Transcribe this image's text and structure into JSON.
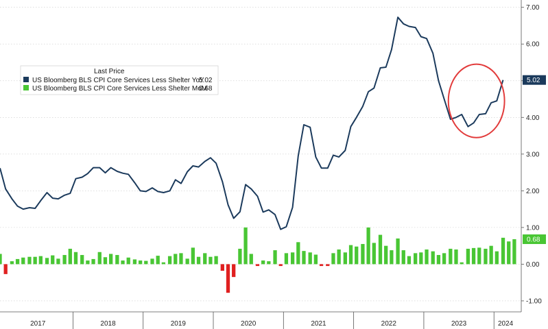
{
  "chart_data": {
    "type": "line",
    "legend": {
      "header": "Last Price",
      "position": "top-left",
      "entries": [
        {
          "label": "US Bloomberg BLS CPI Core Services Less Shelter YoY",
          "value": "5.02",
          "color": "#1b3a5c"
        },
        {
          "label": "US Bloomberg BLS CPI Core Services Less Shelter MoM",
          "value": "0.68",
          "color": "#49c634"
        }
      ]
    },
    "yaxis": {
      "side": "right",
      "ylim": [
        -1.3,
        7.2
      ],
      "ticks": [
        "7.00",
        "6.00",
        "5.00",
        "4.00",
        "3.00",
        "2.00",
        "1.00",
        "0.00",
        "-1.00"
      ],
      "tick_values": [
        7,
        6,
        5,
        4,
        3,
        2,
        1,
        0,
        -1
      ]
    },
    "xaxis": {
      "years": [
        "2017",
        "2018",
        "2019",
        "2020",
        "2021",
        "2022",
        "2023",
        "2024"
      ],
      "start": 2016.96,
      "end": 2024.33
    },
    "grid": "dotted",
    "last_value_badges": [
      {
        "value": "5.02",
        "color": "#1b3a5c"
      },
      {
        "value": "0.68",
        "color": "#49c634"
      }
    ],
    "highlight_circle": {
      "color": "#e23b3b",
      "x_range": [
        2023.35,
        2024.15
      ],
      "y_range": [
        3.45,
        5.45
      ]
    },
    "series": [
      {
        "name": "US Bloomberg BLS CPI Core Services Less Shelter YoY",
        "kind": "line",
        "color": "#1b3a5c",
        "points": [
          [
            2016.96,
            2.62
          ],
          [
            2017.04,
            2.05
          ],
          [
            2017.13,
            1.78
          ],
          [
            2017.21,
            1.58
          ],
          [
            2017.29,
            1.5
          ],
          [
            2017.38,
            1.54
          ],
          [
            2017.46,
            1.52
          ],
          [
            2017.54,
            1.73
          ],
          [
            2017.63,
            1.95
          ],
          [
            2017.71,
            1.8
          ],
          [
            2017.79,
            1.78
          ],
          [
            2017.88,
            1.88
          ],
          [
            2017.96,
            1.93
          ],
          [
            2018.04,
            2.33
          ],
          [
            2018.13,
            2.37
          ],
          [
            2018.21,
            2.47
          ],
          [
            2018.29,
            2.63
          ],
          [
            2018.38,
            2.63
          ],
          [
            2018.46,
            2.49
          ],
          [
            2018.54,
            2.63
          ],
          [
            2018.63,
            2.53
          ],
          [
            2018.71,
            2.48
          ],
          [
            2018.79,
            2.45
          ],
          [
            2018.88,
            2.22
          ],
          [
            2018.96,
            2.0
          ],
          [
            2019.04,
            1.98
          ],
          [
            2019.13,
            2.08
          ],
          [
            2019.21,
            1.98
          ],
          [
            2019.29,
            1.95
          ],
          [
            2019.38,
            2.0
          ],
          [
            2019.46,
            2.3
          ],
          [
            2019.54,
            2.2
          ],
          [
            2019.63,
            2.52
          ],
          [
            2019.71,
            2.68
          ],
          [
            2019.79,
            2.65
          ],
          [
            2019.88,
            2.8
          ],
          [
            2019.96,
            2.9
          ],
          [
            2020.04,
            2.75
          ],
          [
            2020.13,
            2.25
          ],
          [
            2020.21,
            1.62
          ],
          [
            2020.29,
            1.25
          ],
          [
            2020.38,
            1.43
          ],
          [
            2020.46,
            2.17
          ],
          [
            2020.54,
            2.05
          ],
          [
            2020.63,
            1.85
          ],
          [
            2020.71,
            1.42
          ],
          [
            2020.79,
            1.48
          ],
          [
            2020.88,
            1.35
          ],
          [
            2020.96,
            0.95
          ],
          [
            2021.04,
            1.02
          ],
          [
            2021.13,
            1.55
          ],
          [
            2021.21,
            2.95
          ],
          [
            2021.29,
            3.8
          ],
          [
            2021.38,
            3.73
          ],
          [
            2021.46,
            2.92
          ],
          [
            2021.54,
            2.62
          ],
          [
            2021.63,
            2.62
          ],
          [
            2021.71,
            2.97
          ],
          [
            2021.79,
            2.92
          ],
          [
            2021.88,
            3.1
          ],
          [
            2021.96,
            3.75
          ],
          [
            2022.04,
            4.0
          ],
          [
            2022.13,
            4.3
          ],
          [
            2022.21,
            4.7
          ],
          [
            2022.29,
            4.8
          ],
          [
            2022.38,
            5.35
          ],
          [
            2022.46,
            5.37
          ],
          [
            2022.54,
            5.85
          ],
          [
            2022.63,
            6.73
          ],
          [
            2022.71,
            6.55
          ],
          [
            2022.79,
            6.48
          ],
          [
            2022.88,
            6.45
          ],
          [
            2022.96,
            6.2
          ],
          [
            2023.04,
            6.15
          ],
          [
            2023.13,
            5.75
          ],
          [
            2023.21,
            5.0
          ],
          [
            2023.29,
            4.5
          ],
          [
            2023.38,
            3.95
          ],
          [
            2023.46,
            4.0
          ],
          [
            2023.54,
            4.08
          ],
          [
            2023.63,
            3.75
          ],
          [
            2023.71,
            3.85
          ],
          [
            2023.79,
            4.08
          ],
          [
            2023.88,
            4.1
          ],
          [
            2023.96,
            4.4
          ],
          [
            2024.04,
            4.45
          ],
          [
            2024.13,
            5.02
          ]
        ]
      },
      {
        "name": "US Bloomberg BLS CPI Core Services Less Shelter MoM",
        "kind": "bar",
        "color_positive": "#49c634",
        "color_negative": "#e02020",
        "points": [
          [
            2016.96,
            0.28
          ],
          [
            2017.04,
            -0.27
          ],
          [
            2017.13,
            0.08
          ],
          [
            2017.21,
            0.14
          ],
          [
            2017.29,
            0.18
          ],
          [
            2017.38,
            0.2
          ],
          [
            2017.46,
            0.2
          ],
          [
            2017.54,
            0.22
          ],
          [
            2017.63,
            0.17
          ],
          [
            2017.71,
            0.24
          ],
          [
            2017.79,
            0.15
          ],
          [
            2017.88,
            0.25
          ],
          [
            2017.96,
            0.42
          ],
          [
            2018.04,
            0.33
          ],
          [
            2018.13,
            0.25
          ],
          [
            2018.21,
            0.1
          ],
          [
            2018.29,
            0.14
          ],
          [
            2018.38,
            0.33
          ],
          [
            2018.46,
            0.19
          ],
          [
            2018.54,
            0.28
          ],
          [
            2018.63,
            0.25
          ],
          [
            2018.71,
            0.1
          ],
          [
            2018.79,
            0.18
          ],
          [
            2018.88,
            0.13
          ],
          [
            2018.96,
            0.1
          ],
          [
            2019.04,
            0.09
          ],
          [
            2019.13,
            0.15
          ],
          [
            2019.21,
            0.23
          ],
          [
            2019.29,
            0.05
          ],
          [
            2019.38,
            0.22
          ],
          [
            2019.46,
            0.28
          ],
          [
            2019.54,
            0.3
          ],
          [
            2019.63,
            0.15
          ],
          [
            2019.71,
            0.45
          ],
          [
            2019.79,
            0.2
          ],
          [
            2019.88,
            0.3
          ],
          [
            2019.96,
            0.2
          ],
          [
            2020.04,
            0.22
          ],
          [
            2020.13,
            -0.18
          ],
          [
            2020.21,
            -0.78
          ],
          [
            2020.29,
            -0.35
          ],
          [
            2020.38,
            0.42
          ],
          [
            2020.46,
            1.0
          ],
          [
            2020.54,
            0.28
          ],
          [
            2020.63,
            -0.05
          ],
          [
            2020.71,
            0.1
          ],
          [
            2020.79,
            0.08
          ],
          [
            2020.88,
            0.38
          ],
          [
            2020.96,
            -0.05
          ],
          [
            2021.04,
            0.3
          ],
          [
            2021.13,
            0.32
          ],
          [
            2021.21,
            0.6
          ],
          [
            2021.29,
            0.36
          ],
          [
            2021.38,
            0.32
          ],
          [
            2021.46,
            0.26
          ],
          [
            2021.54,
            -0.05
          ],
          [
            2021.63,
            -0.05
          ],
          [
            2021.71,
            0.3
          ],
          [
            2021.79,
            0.4
          ],
          [
            2021.88,
            0.32
          ],
          [
            2021.96,
            0.52
          ],
          [
            2022.04,
            0.48
          ],
          [
            2022.13,
            0.55
          ],
          [
            2022.21,
            1.0
          ],
          [
            2022.29,
            0.58
          ],
          [
            2022.38,
            0.8
          ],
          [
            2022.46,
            0.5
          ],
          [
            2022.54,
            0.38
          ],
          [
            2022.63,
            0.7
          ],
          [
            2022.71,
            0.38
          ],
          [
            2022.79,
            0.22
          ],
          [
            2022.88,
            0.3
          ],
          [
            2022.96,
            0.32
          ],
          [
            2023.04,
            0.4
          ],
          [
            2023.13,
            0.35
          ],
          [
            2023.21,
            0.25
          ],
          [
            2023.29,
            0.3
          ],
          [
            2023.38,
            0.42
          ],
          [
            2023.46,
            0.4
          ],
          [
            2023.54,
            0.05
          ],
          [
            2023.63,
            0.42
          ],
          [
            2023.71,
            0.44
          ],
          [
            2023.79,
            0.45
          ],
          [
            2023.88,
            0.42
          ],
          [
            2023.96,
            0.5
          ],
          [
            2024.04,
            0.35
          ],
          [
            2024.13,
            0.72
          ],
          [
            2024.21,
            0.62
          ],
          [
            2024.29,
            0.68
          ]
        ]
      }
    ]
  }
}
